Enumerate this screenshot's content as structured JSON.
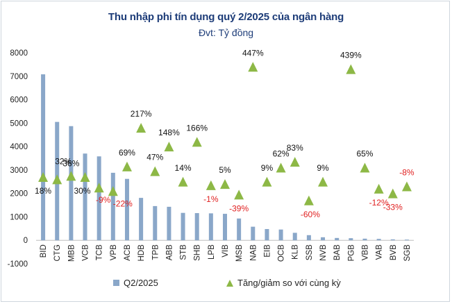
{
  "chart_data": {
    "type": "bar",
    "title": "Thu nhập phi tín dụng quý 2/2025 của ngân hàng",
    "subtitle": "Đvt: Tỷ đồng",
    "categories": [
      "BID",
      "CTG",
      "MBB",
      "VCB",
      "TCB",
      "VPB",
      "ACB",
      "HDB",
      "TPB",
      "ABB",
      "STB",
      "SHB",
      "LPB",
      "VIB",
      "MSB",
      "NAB",
      "EIB",
      "OCB",
      "KLB",
      "SSB",
      "NVB",
      "BAB",
      "PGB",
      "VBB",
      "VAB",
      "BVB",
      "SGB"
    ],
    "ylim": [
      -1000,
      8000
    ],
    "yticks": [
      -1000,
      0,
      1000,
      2000,
      3000,
      4000,
      5000,
      6000,
      7000,
      8000
    ],
    "series": [
      {
        "name": "Q2/2025",
        "type": "bar",
        "color": "#8aa7c9",
        "values": [
          7080,
          5050,
          4870,
          3700,
          3580,
          2880,
          2620,
          1810,
          1460,
          1430,
          1170,
          1160,
          1150,
          1130,
          930,
          580,
          480,
          460,
          320,
          220,
          130,
          100,
          90,
          70,
          60,
          40,
          30
        ]
      },
      {
        "name": "Tăng/giảm so với cùng kỳ",
        "type": "marker",
        "color": "#8db846",
        "marker_values": [
          2700,
          2600,
          2750,
          2700,
          2250,
          2100,
          3150,
          4800,
          2950,
          4000,
          2500,
          4200,
          2350,
          2400,
          1950,
          7400,
          2500,
          3100,
          3350,
          1700,
          2500,
          0,
          7300,
          3100,
          2200,
          2000,
          2300
        ],
        "label_values": [
          "18%",
          "32%",
          "36%",
          "30%",
          "-9%",
          "-22%",
          "69%",
          "217%",
          "47%",
          "148%",
          "14%",
          "166%",
          "-1%",
          "5%",
          "-39%",
          "447%",
          "9%",
          "62%",
          "83%",
          "-60%",
          "9%",
          "",
          "439%",
          "65%",
          "-12%",
          "-33%",
          "-8%"
        ]
      }
    ],
    "legend": [
      "Q2/2025",
      "Tăng/giảm so với cùng kỳ"
    ],
    "legend_position": "bottom",
    "grid": false,
    "colors": {
      "bar": "#8aa7c9",
      "marker": "#8db846",
      "label_positive": "#111111",
      "label_negative": "#e02020",
      "title": "#1d3c78"
    }
  }
}
